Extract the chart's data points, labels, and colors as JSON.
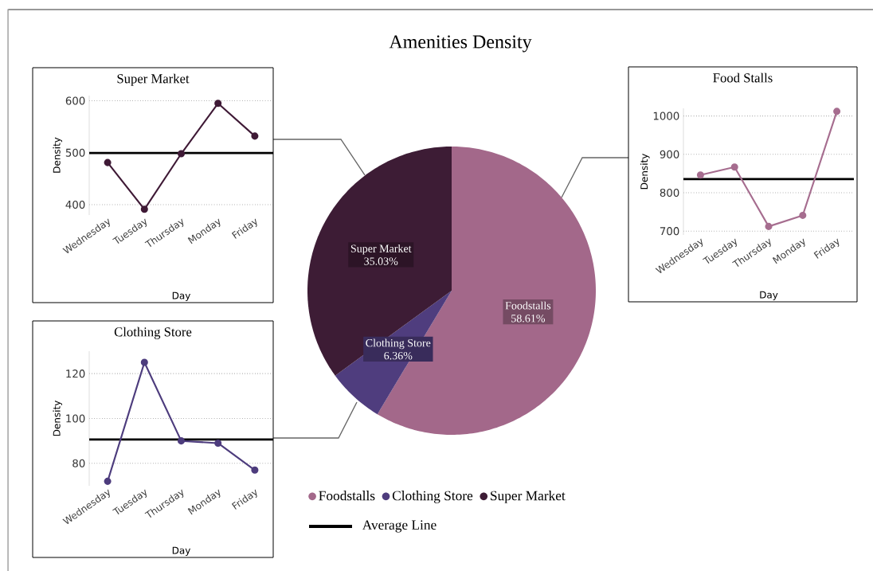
{
  "chart_data": [
    {
      "type": "pie",
      "title": "Amenities Density",
      "categories": [
        "Foodstalls",
        "Clothing Store",
        "Super Market"
      ],
      "values": [
        58.61,
        6.36,
        35.03
      ],
      "value_labels": [
        "58.61%",
        "6.36%",
        "35.03%"
      ],
      "colors": [
        "#a3688a",
        "#4f3d7e",
        "#3d1c35"
      ],
      "legend": "bottom"
    },
    {
      "type": "line",
      "title": "Super Market",
      "xlabel": "Day",
      "ylabel": "Density",
      "categories": [
        "Wednesday",
        "Tuesday",
        "Thursday",
        "Monday",
        "Friday"
      ],
      "series": [
        {
          "color": "#3f1a36",
          "values": [
            481,
            391,
            498,
            595,
            532
          ]
        }
      ],
      "ylim": [
        380,
        610
      ],
      "yticks": [
        400,
        500,
        600
      ],
      "grid": "y",
      "marker": "circle",
      "ref_lines": [
        {
          "axis": "y",
          "value": 499.4,
          "label": "Average Line",
          "color": "#000000"
        }
      ]
    },
    {
      "type": "line",
      "title": "Food Stalls",
      "xlabel": "Day",
      "ylabel": "Density",
      "categories": [
        "Wednesday",
        "Tuesday",
        "Thursday",
        "Monday",
        "Friday"
      ],
      "series": [
        {
          "color": "#a66d8f",
          "values": [
            846,
            867,
            712,
            741,
            1012
          ]
        }
      ],
      "ylim": [
        690,
        1020
      ],
      "yticks": [
        700,
        800,
        900,
        1000
      ],
      "grid": "y",
      "marker": "circle",
      "ref_lines": [
        {
          "axis": "y",
          "value": 835.6,
          "color": "#000000"
        }
      ]
    },
    {
      "type": "line",
      "title": "Clothing Store",
      "xlabel": "Day",
      "ylabel": "Density",
      "categories": [
        "Wednesday",
        "Tuesday",
        "Thursday",
        "Monday",
        "Friday"
      ],
      "series": [
        {
          "color": "#4d3c7d",
          "values": [
            72,
            125,
            90,
            89,
            77
          ]
        }
      ],
      "ylim": [
        70,
        130
      ],
      "yticks": [
        80,
        100,
        120
      ],
      "grid": "y",
      "marker": "circle",
      "ref_lines": [
        {
          "axis": "y",
          "value": 90.6,
          "color": "#000000"
        }
      ]
    }
  ]
}
